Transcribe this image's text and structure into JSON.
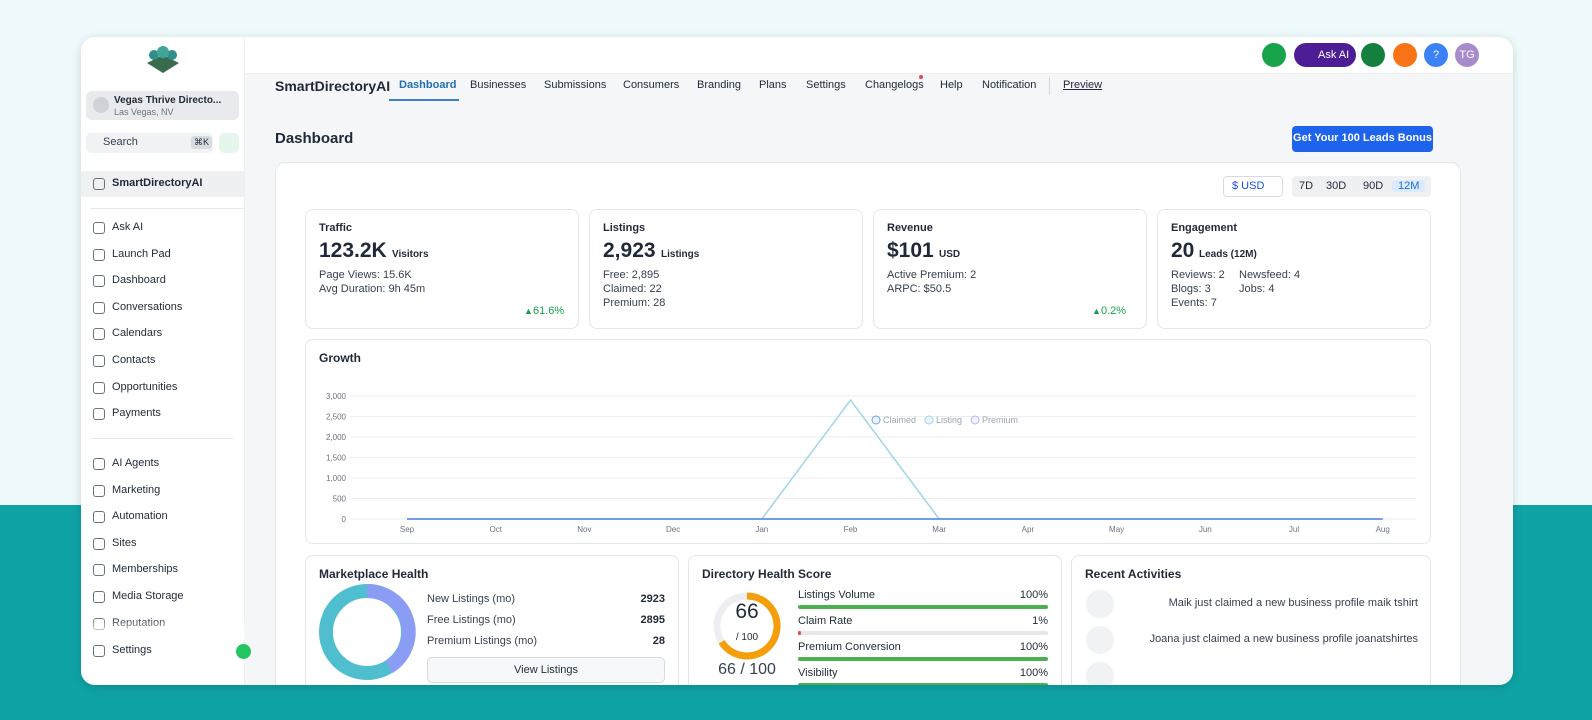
{
  "sidebar": {
    "account": {
      "name": "Vegas Thrive Directo...",
      "location": "Las Vegas, NV"
    },
    "search": "Search",
    "shortcut": "⌘K",
    "pinned": "SmartDirectoryAI",
    "menu1": [
      "Ask AI",
      "Launch Pad",
      "Dashboard",
      "Conversations",
      "Calendars",
      "Contacts",
      "Opportunities",
      "Payments"
    ],
    "menu2": [
      "AI Agents",
      "Marketing",
      "Automation",
      "Sites",
      "Memberships",
      "Media Storage",
      "Reputation"
    ],
    "settings": "Settings"
  },
  "topbar": {
    "ask_ai": "Ask AI",
    "help": "?",
    "avatar": "TG"
  },
  "nav": {
    "brand": "SmartDirectoryAI",
    "tabs": [
      "Dashboard",
      "Businesses",
      "Submissions",
      "Consumers",
      "Branding",
      "Plans",
      "Settings",
      "Changelogs",
      "Help",
      "Notification"
    ],
    "preview": "Preview"
  },
  "page": {
    "title": "Dashboard",
    "cta": "Get Your 100 Leads Bonus",
    "currency": "$ USD",
    "ranges": [
      "7D",
      "30D",
      "90D",
      "12M"
    ]
  },
  "cards": [
    {
      "title": "Traffic",
      "value": "123.2K",
      "unit": "Visitors",
      "lines": [
        "Page Views: 15.6K",
        "Avg Duration: 9h 45m"
      ],
      "change": "61.6%"
    },
    {
      "title": "Listings",
      "value": "2,923",
      "unit": "Listings",
      "lines": [
        "Free: 2,895",
        "Claimed: 22",
        "Premium: 28"
      ]
    },
    {
      "title": "Revenue",
      "value": "$101",
      "unit": "USD",
      "lines": [
        "Active Premium: 2",
        "ARPC: $50.5"
      ],
      "change": "0.2%"
    },
    {
      "title": "Engagement",
      "value": "20",
      "unit": "Leads (12M)",
      "lines": [
        "Reviews: 2",
        "Newsfeed: 4",
        "Blogs: 3",
        "Jobs: 4",
        "Events: 7"
      ]
    }
  ],
  "chart_data": {
    "type": "line",
    "title": "Growth",
    "categories": [
      "Sep",
      "Oct",
      "Nov",
      "Dec",
      "Jan",
      "Feb",
      "Mar",
      "Apr",
      "May",
      "Jun",
      "Jul",
      "Aug"
    ],
    "series": [
      {
        "name": "Claimed",
        "color": "#6f9ee6",
        "values": [
          0,
          0,
          0,
          0,
          0,
          0,
          0,
          0,
          0,
          0,
          0,
          0
        ]
      },
      {
        "name": "Listing",
        "color": "#9ed6e6",
        "values": [
          0,
          0,
          0,
          0,
          0,
          2900,
          0,
          0,
          0,
          0,
          0,
          0
        ]
      },
      {
        "name": "Premium",
        "color": "#b6b2ea",
        "values": [
          0,
          0,
          0,
          0,
          0,
          0,
          0,
          0,
          0,
          0,
          0,
          0
        ]
      }
    ],
    "ylim": [
      0,
      3000
    ],
    "yticks": [
      0,
      500,
      {
        "value": 1000,
        "label": "1,000"
      },
      {
        "value": 1500,
        "label": "1,500"
      },
      {
        "value": 2000,
        "label": "2,000"
      },
      {
        "value": 2500,
        "label": "2,500"
      },
      {
        "value": 3000,
        "label": "3,000"
      }
    ],
    "grid": true
  },
  "marketplace": {
    "title": "Marketplace Health",
    "rows": [
      [
        "New Listings (mo)",
        "2923"
      ],
      [
        "Free Listings (mo)",
        "2895"
      ],
      [
        "Premium Listings (mo)",
        "28"
      ]
    ],
    "button": "View Listings"
  },
  "health": {
    "title": "Directory Health Score",
    "score": 66,
    "score_label": "/ 100",
    "summary": "66 / 100",
    "metrics": [
      {
        "name": "Listings Volume",
        "value": 100,
        "value_label": "100%"
      },
      {
        "name": "Claim Rate",
        "value": 1,
        "value_label": "1%"
      },
      {
        "name": "Premium Conversion",
        "value": 100,
        "value_label": "100%"
      },
      {
        "name": "Visibility",
        "value": 100,
        "value_label": "100%"
      }
    ]
  },
  "activities": {
    "title": "Recent Activities",
    "items": [
      "Maik just claimed a new business profile maik tshirt",
      "Joana just claimed a new business profile joanatshirtes"
    ]
  }
}
